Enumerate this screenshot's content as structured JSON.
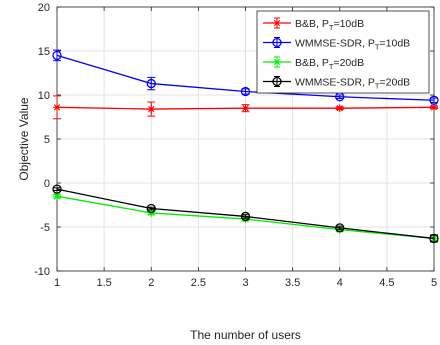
{
  "chart_data": {
    "type": "line",
    "xlabel": "The number of users",
    "ylabel": "Objective Value",
    "xlim": [
      1,
      5
    ],
    "ylim": [
      -10,
      20
    ],
    "xticks": [
      1,
      1.5,
      2,
      2.5,
      3,
      3.5,
      4,
      4.5,
      5
    ],
    "xtick_labels": [
      "1",
      "1.5",
      "2",
      "2.5",
      "3",
      "3.5",
      "4",
      "4.5",
      "5"
    ],
    "yticks": [
      -10,
      -5,
      0,
      5,
      10,
      15,
      20
    ],
    "ytick_labels": [
      "-10",
      "-5",
      "0",
      "5",
      "10",
      "15",
      "20"
    ],
    "grid": true,
    "legend_position": "top-right",
    "x": [
      1,
      2,
      3,
      4,
      5
    ],
    "series": [
      {
        "name_parts": [
          "B&B, P",
          "T",
          "=10dB"
        ],
        "color": "#ff0000",
        "marker": "star",
        "values": [
          8.6,
          8.4,
          8.5,
          8.5,
          8.6
        ],
        "errors": [
          1.3,
          0.8,
          0.4,
          0.15,
          0.15
        ]
      },
      {
        "name_parts": [
          "WMMSE-SDR, P",
          "T",
          "=10dB"
        ],
        "color": "#0000ff",
        "marker": "circle",
        "values": [
          14.5,
          11.3,
          10.4,
          9.8,
          9.4
        ],
        "errors": [
          0.6,
          0.7,
          0.3,
          0.2,
          0.25
        ]
      },
      {
        "name_parts": [
          "B&B, P",
          "T",
          "=20dB"
        ],
        "color": "#00ee00",
        "marker": "star",
        "values": [
          -1.5,
          -3.4,
          -4.1,
          -5.3,
          -6.3
        ],
        "errors": [
          0.2,
          0.2,
          0.2,
          0.2,
          0.3
        ]
      },
      {
        "name_parts": [
          "WMMSE-SDR, P",
          "T",
          "=20dB"
        ],
        "color": "#000000",
        "marker": "circle",
        "values": [
          -0.7,
          -2.9,
          -3.8,
          -5.1,
          -6.3
        ],
        "errors": [
          0.15,
          0.15,
          0.2,
          0.2,
          0.4
        ]
      }
    ]
  }
}
